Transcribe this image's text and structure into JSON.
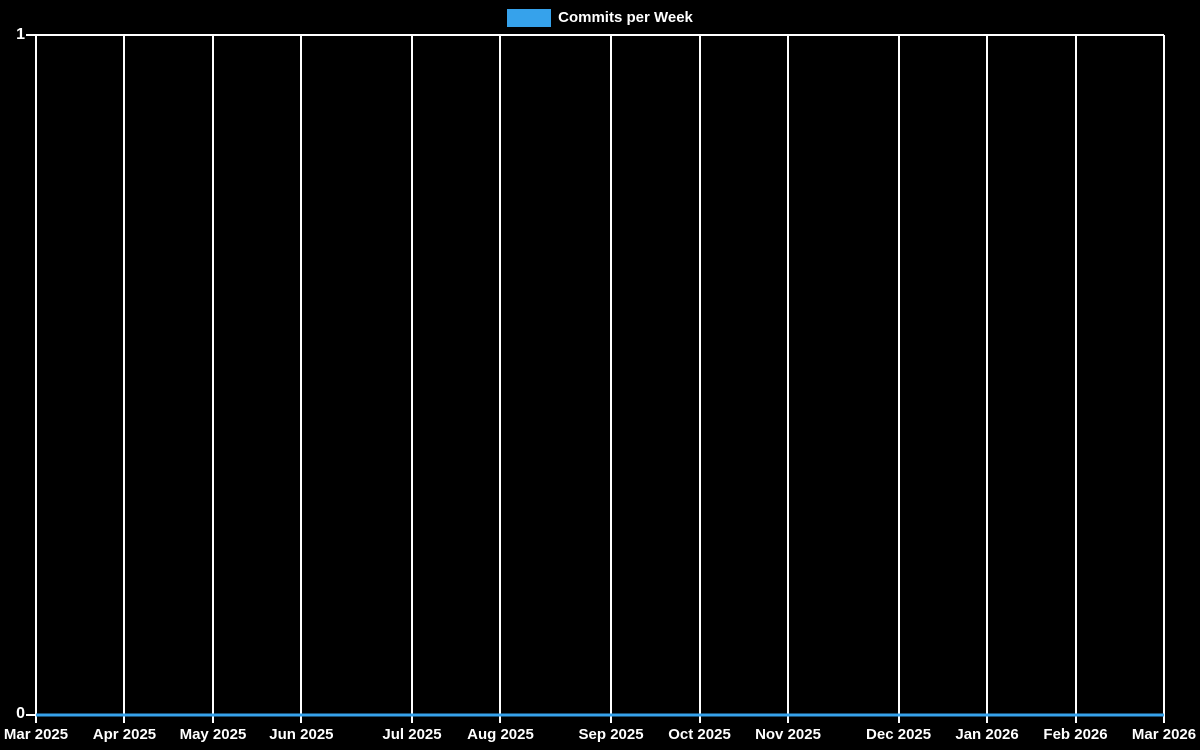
{
  "page": {
    "background": "#000000",
    "text_color": "#ffffff",
    "grid_color": "#ffffff"
  },
  "chart_data": {
    "type": "line",
    "title": "",
    "xlabel": "",
    "ylabel": "",
    "ylim": [
      0,
      1
    ],
    "y_ticks": [
      "0",
      "1"
    ],
    "grid": {
      "vertical": true,
      "horizontal": false,
      "legend_position": "top"
    },
    "legend": {
      "label": "Commits per Week",
      "color": "#36a2eb"
    },
    "x_ticks": [
      {
        "label": "Mar 2025",
        "week": 0
      },
      {
        "label": "Apr 2025",
        "week": 4
      },
      {
        "label": "May 2025",
        "week": 8
      },
      {
        "label": "Jun 2025",
        "week": 12
      },
      {
        "label": "Jul 2025",
        "week": 17
      },
      {
        "label": "Aug 2025",
        "week": 21
      },
      {
        "label": "Sep 2025",
        "week": 26
      },
      {
        "label": "Oct 2025",
        "week": 30
      },
      {
        "label": "Nov 2025",
        "week": 34
      },
      {
        "label": "Dec 2025",
        "week": 39
      },
      {
        "label": "Jan 2026",
        "week": 43
      },
      {
        "label": "Feb 2026",
        "week": 47
      },
      {
        "label": "Mar 2026",
        "week": 51
      }
    ],
    "total_weeks": 51,
    "series": [
      {
        "name": "Commits per Week",
        "color": "#36a2eb",
        "line_width": 3,
        "values": [
          0,
          0,
          0,
          0,
          0,
          0,
          0,
          0,
          0,
          0,
          0,
          0,
          0,
          0,
          0,
          0,
          0,
          0,
          0,
          0,
          0,
          0,
          0,
          0,
          0,
          0,
          0,
          0,
          0,
          0,
          0,
          0,
          0,
          0,
          0,
          0,
          0,
          0,
          0,
          0,
          0,
          0,
          0,
          0,
          0,
          0,
          0,
          0,
          0,
          0,
          0,
          0
        ]
      }
    ]
  }
}
